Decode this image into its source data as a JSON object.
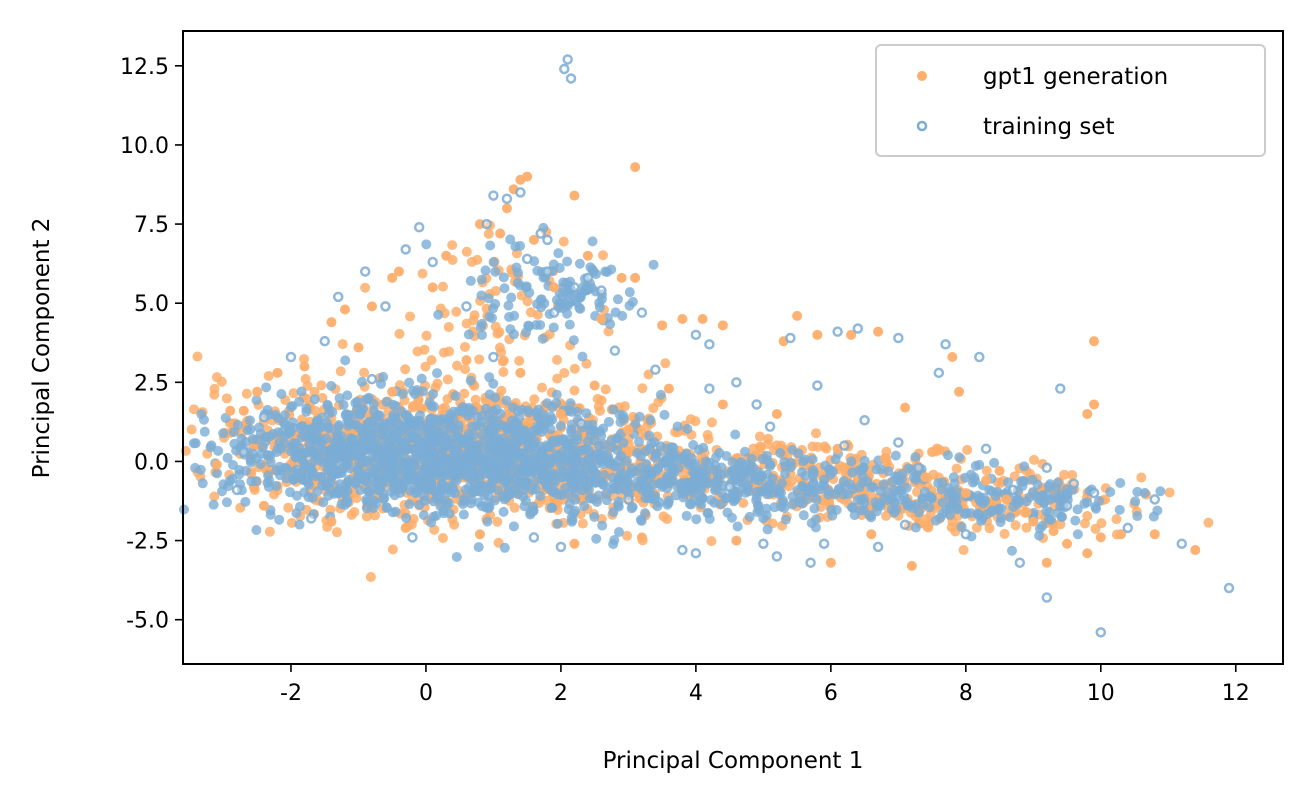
{
  "chart_data": {
    "type": "scatter",
    "xlabel": "Principal Component 1",
    "ylabel": "Principal Component 2",
    "xlim": [
      -3.6,
      12.7
    ],
    "ylim": [
      -6.4,
      13.6
    ],
    "x_ticks": [
      -2,
      0,
      2,
      4,
      6,
      8,
      10,
      12
    ],
    "x_tick_labels": [
      "-2",
      "0",
      "2",
      "4",
      "6",
      "8",
      "10",
      "12"
    ],
    "y_ticks": [
      -5.0,
      -2.5,
      0.0,
      2.5,
      5.0,
      7.5,
      10.0,
      12.5
    ],
    "y_tick_labels": [
      "-5.0",
      "-2.5",
      "0.0",
      "2.5",
      "5.0",
      "7.5",
      "10.0",
      "12.5"
    ],
    "grid": false,
    "legend_position": "top-right",
    "series": [
      {
        "name": "gpt1 generation",
        "color": "#fdae6b",
        "marker": "filled-circle",
        "points": [
          [
            -3.1,
            -0.1
          ],
          [
            -2.9,
            1.6
          ],
          [
            -2.7,
            1.6
          ],
          [
            -2.5,
            2.2
          ],
          [
            -2.2,
            2.8
          ],
          [
            -1.8,
            3.0
          ],
          [
            -1.4,
            4.4
          ],
          [
            -1.2,
            4.8
          ],
          [
            -0.8,
            4.9
          ],
          [
            -0.5,
            5.8
          ],
          [
            -0.4,
            6.0
          ],
          [
            0.1,
            5.5
          ],
          [
            0.3,
            6.5
          ],
          [
            0.8,
            7.5
          ],
          [
            1.1,
            7.2
          ],
          [
            1.2,
            8.0
          ],
          [
            1.3,
            8.6
          ],
          [
            1.4,
            8.9
          ],
          [
            1.5,
            9.0
          ],
          [
            2.2,
            8.4
          ],
          [
            3.1,
            9.3
          ],
          [
            1.6,
            7.0
          ],
          [
            1.9,
            5.5
          ],
          [
            2.4,
            6.5
          ],
          [
            2.9,
            5.8
          ],
          [
            3.1,
            5.8
          ],
          [
            2.6,
            4.5
          ],
          [
            3.5,
            4.3
          ],
          [
            3.8,
            4.5
          ],
          [
            4.1,
            4.5
          ],
          [
            4.4,
            4.3
          ],
          [
            5.5,
            4.6
          ],
          [
            5.3,
            3.8
          ],
          [
            5.8,
            4.0
          ],
          [
            6.3,
            4.0
          ],
          [
            6.7,
            4.1
          ],
          [
            7.8,
            3.3
          ],
          [
            9.9,
            3.8
          ],
          [
            9.8,
            1.5
          ],
          [
            9.9,
            1.8
          ],
          [
            7.1,
            1.7
          ],
          [
            7.9,
            2.2
          ],
          [
            7.5,
            0.3
          ],
          [
            8.0,
            -1.0
          ],
          [
            8.3,
            -0.6
          ],
          [
            8.5,
            -0.3
          ],
          [
            9.0,
            -1.9
          ],
          [
            9.3,
            -2.2
          ],
          [
            9.5,
            -2.6
          ],
          [
            9.8,
            -2.9
          ],
          [
            10.0,
            -2.4
          ],
          [
            10.3,
            -2.3
          ],
          [
            10.8,
            -2.3
          ],
          [
            11.4,
            -2.8
          ],
          [
            9.2,
            -3.2
          ],
          [
            7.2,
            -3.3
          ],
          [
            6.0,
            -3.2
          ],
          [
            6.6,
            -2.3
          ],
          [
            4.6,
            -2.5
          ],
          [
            3.2,
            -2.4
          ],
          [
            2.2,
            -2.6
          ],
          [
            0.8,
            -2.3
          ],
          [
            -0.3,
            -2.1
          ],
          [
            -1.4,
            -1.9
          ],
          [
            -2.4,
            -1.4
          ],
          [
            -1.0,
            3.6
          ],
          [
            0.6,
            3.2
          ],
          [
            1.4,
            2.8
          ],
          [
            2.5,
            2.4
          ],
          [
            3.6,
            2.3
          ],
          [
            4.4,
            1.8
          ],
          [
            5.2,
            1.5
          ],
          [
            6.1,
            0.4
          ],
          [
            6.8,
            0.1
          ],
          [
            7.4,
            -0.5
          ],
          [
            8.6,
            -1.2
          ],
          [
            8.9,
            -1.6
          ],
          [
            3.0,
            1.0
          ],
          [
            2.0,
            1.5
          ],
          [
            -0.5,
            2.2
          ]
        ]
      },
      {
        "name": "training set",
        "color": "#7bacd4",
        "marker": "ring",
        "points": [
          [
            2.1,
            12.7
          ],
          [
            2.05,
            12.4
          ],
          [
            2.15,
            12.1
          ],
          [
            1.0,
            8.4
          ],
          [
            1.4,
            8.5
          ],
          [
            1.2,
            8.3
          ],
          [
            -0.1,
            7.4
          ],
          [
            0.9,
            7.5
          ],
          [
            1.7,
            7.2
          ],
          [
            1.8,
            7.0
          ],
          [
            -1.3,
            5.2
          ],
          [
            -0.9,
            6.0
          ],
          [
            -0.3,
            6.7
          ],
          [
            0.1,
            6.3
          ],
          [
            1.5,
            6.4
          ],
          [
            1.8,
            6.0
          ],
          [
            2.2,
            5.5
          ],
          [
            2.4,
            5.8
          ],
          [
            2.6,
            5.4
          ],
          [
            3.2,
            4.7
          ],
          [
            4.0,
            4.0
          ],
          [
            4.2,
            3.7
          ],
          [
            5.4,
            3.9
          ],
          [
            6.1,
            4.1
          ],
          [
            6.4,
            4.2
          ],
          [
            7.0,
            3.9
          ],
          [
            7.7,
            3.7
          ],
          [
            8.2,
            3.3
          ],
          [
            9.4,
            2.3
          ],
          [
            7.6,
            2.8
          ],
          [
            5.8,
            2.4
          ],
          [
            4.6,
            2.5
          ],
          [
            4.9,
            1.8
          ],
          [
            6.5,
            1.3
          ],
          [
            7.0,
            0.6
          ],
          [
            8.3,
            0.4
          ],
          [
            9.2,
            -0.2
          ],
          [
            9.6,
            -0.7
          ],
          [
            9.9,
            -1.0
          ],
          [
            10.4,
            -2.1
          ],
          [
            10.8,
            -1.2
          ],
          [
            11.2,
            -2.6
          ],
          [
            11.9,
            -4.0
          ],
          [
            10.0,
            -5.4
          ],
          [
            9.2,
            -4.3
          ],
          [
            8.8,
            -3.2
          ],
          [
            8.0,
            -2.3
          ],
          [
            7.1,
            -2.0
          ],
          [
            6.7,
            -2.7
          ],
          [
            5.9,
            -2.6
          ],
          [
            5.2,
            -3.0
          ],
          [
            5.7,
            -3.2
          ],
          [
            5.0,
            -2.6
          ],
          [
            4.0,
            -2.9
          ],
          [
            3.8,
            -2.8
          ],
          [
            2.0,
            -2.7
          ],
          [
            1.6,
            -2.4
          ],
          [
            -0.2,
            -2.4
          ],
          [
            -1.7,
            -1.8
          ],
          [
            -2.8,
            -0.9
          ],
          [
            -2.7,
            0.3
          ],
          [
            -2.4,
            1.4
          ],
          [
            -2.0,
            3.3
          ],
          [
            -1.5,
            3.8
          ],
          [
            -0.6,
            4.9
          ],
          [
            0.6,
            4.9
          ],
          [
            1.9,
            4.7
          ],
          [
            2.8,
            3.5
          ],
          [
            3.4,
            2.9
          ],
          [
            4.2,
            2.3
          ],
          [
            5.1,
            1.1
          ],
          [
            6.2,
            0.5
          ],
          [
            7.3,
            -0.2
          ],
          [
            8.7,
            -0.9
          ],
          [
            9.5,
            -1.4
          ],
          [
            3.0,
            -1.2
          ],
          [
            1.0,
            3.3
          ],
          [
            -0.8,
            2.6
          ],
          [
            2.3,
            1.2
          ],
          [
            4.5,
            -0.8
          ]
        ]
      }
    ]
  }
}
